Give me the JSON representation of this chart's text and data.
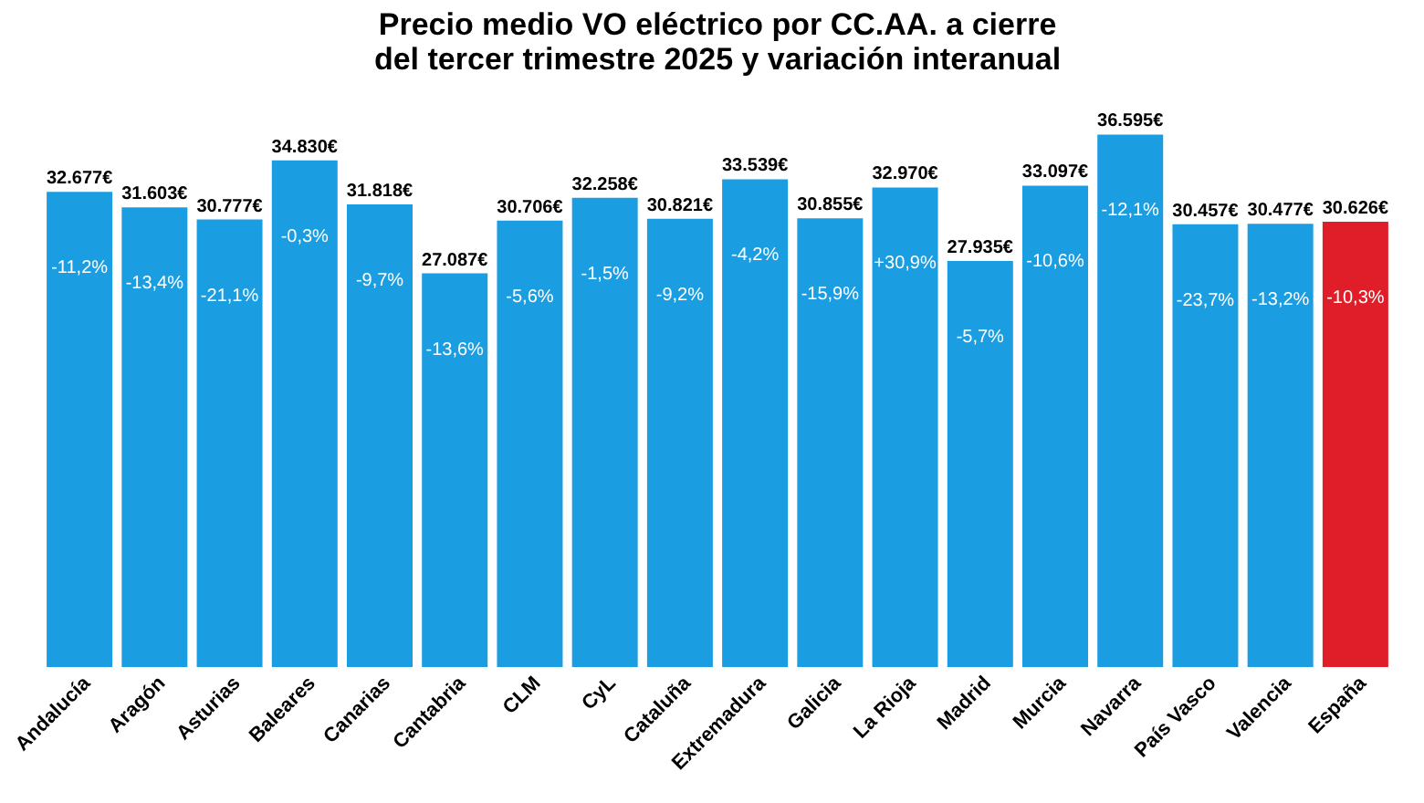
{
  "chart_data": {
    "type": "bar",
    "title": [
      "Precio medio VO eléctrico por CC.AA. a cierre",
      "del tercer trimestre 2025 y variación interanual"
    ],
    "categories": [
      "Andalucía",
      "Aragón",
      "Asturias",
      "Baleares",
      "Canarias",
      "Cantabria",
      "CLM",
      "CyL",
      "Cataluña",
      "Extremadura",
      "Galicia",
      "La Rioja",
      "Madrid",
      "Murcia",
      "Navarra",
      "País Vasco",
      "Valencia",
      "España"
    ],
    "values": [
      32677,
      31603,
      30777,
      34830,
      31818,
      27087,
      30706,
      32258,
      30821,
      33539,
      30855,
      32970,
      27935,
      33097,
      36595,
      30457,
      30477,
      30626
    ],
    "value_labels": [
      "32.677€",
      "31.603€",
      "30.777€",
      "34.830€",
      "31.818€",
      "27.087€",
      "30.706€",
      "32.258€",
      "30.821€",
      "33.539€",
      "30.855€",
      "32.970€",
      "27.935€",
      "33.097€",
      "36.595€",
      "30.457€",
      "30.477€",
      "30.626€"
    ],
    "colors": [
      "#1b9de2",
      "#1b9de2",
      "#1b9de2",
      "#1b9de2",
      "#1b9de2",
      "#1b9de2",
      "#1b9de2",
      "#1b9de2",
      "#1b9de2",
      "#1b9de2",
      "#1b9de2",
      "#1b9de2",
      "#1b9de2",
      "#1b9de2",
      "#1b9de2",
      "#1b9de2",
      "#1b9de2",
      "#e01e2a"
    ],
    "annotations": [
      "-11,2%",
      "-13,4%",
      "-21,1%",
      "-0,3%",
      "-9,7%",
      "-13,6%",
      "-5,6%",
      "-1,5%",
      "-9,2%",
      "-4,2%",
      "-15,9%",
      "+30,9%",
      "-5,7%",
      "-10,6%",
      "-12,1%",
      "-23,7%",
      "-13,2%",
      "-10,3%"
    ]
  }
}
